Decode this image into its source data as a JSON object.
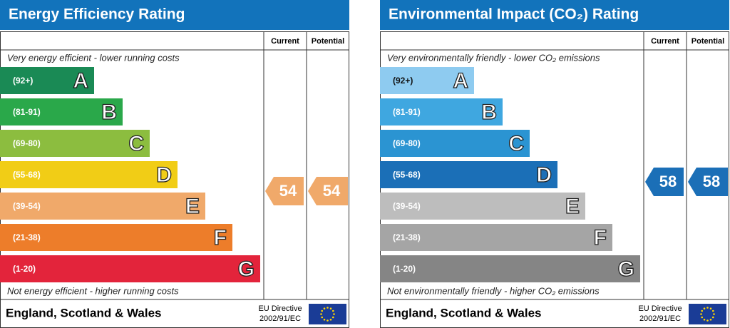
{
  "panels": [
    {
      "title": "Energy Efficiency Rating",
      "current_label": "Current",
      "potential_label": "Potential",
      "top_note": "Very energy efficient - lower running costs",
      "bottom_note": "Not energy efficient - higher running costs",
      "bands": [
        {
          "range": "(92+)",
          "letter": "A"
        },
        {
          "range": "(81-91)",
          "letter": "B"
        },
        {
          "range": "(69-80)",
          "letter": "C"
        },
        {
          "range": "(55-68)",
          "letter": "D"
        },
        {
          "range": "(39-54)",
          "letter": "E"
        },
        {
          "range": "(21-38)",
          "letter": "F"
        },
        {
          "range": "(1-20)",
          "letter": "G"
        }
      ],
      "current": 54,
      "potential": 54,
      "region": "England, Scotland & Wales",
      "directive": "EU Directive",
      "directive_code": "2002/91/EC"
    },
    {
      "title": "Environmental Impact (CO₂) Rating",
      "current_label": "Current",
      "potential_label": "Potential",
      "top_note": "Very environmentally friendly - lower CO₂ emissions",
      "bottom_note": "Not environmentally friendly - higher CO₂ emissions",
      "bands": [
        {
          "range": "(92+)",
          "letter": "A"
        },
        {
          "range": "(81-91)",
          "letter": "B"
        },
        {
          "range": "(69-80)",
          "letter": "C"
        },
        {
          "range": "(55-68)",
          "letter": "D"
        },
        {
          "range": "(39-54)",
          "letter": "E"
        },
        {
          "range": "(21-38)",
          "letter": "F"
        },
        {
          "range": "(1-20)",
          "letter": "G"
        }
      ],
      "current": 58,
      "potential": 58,
      "region": "England, Scotland & Wales",
      "directive": "EU Directive",
      "directive_code": "2002/91/EC"
    }
  ]
}
